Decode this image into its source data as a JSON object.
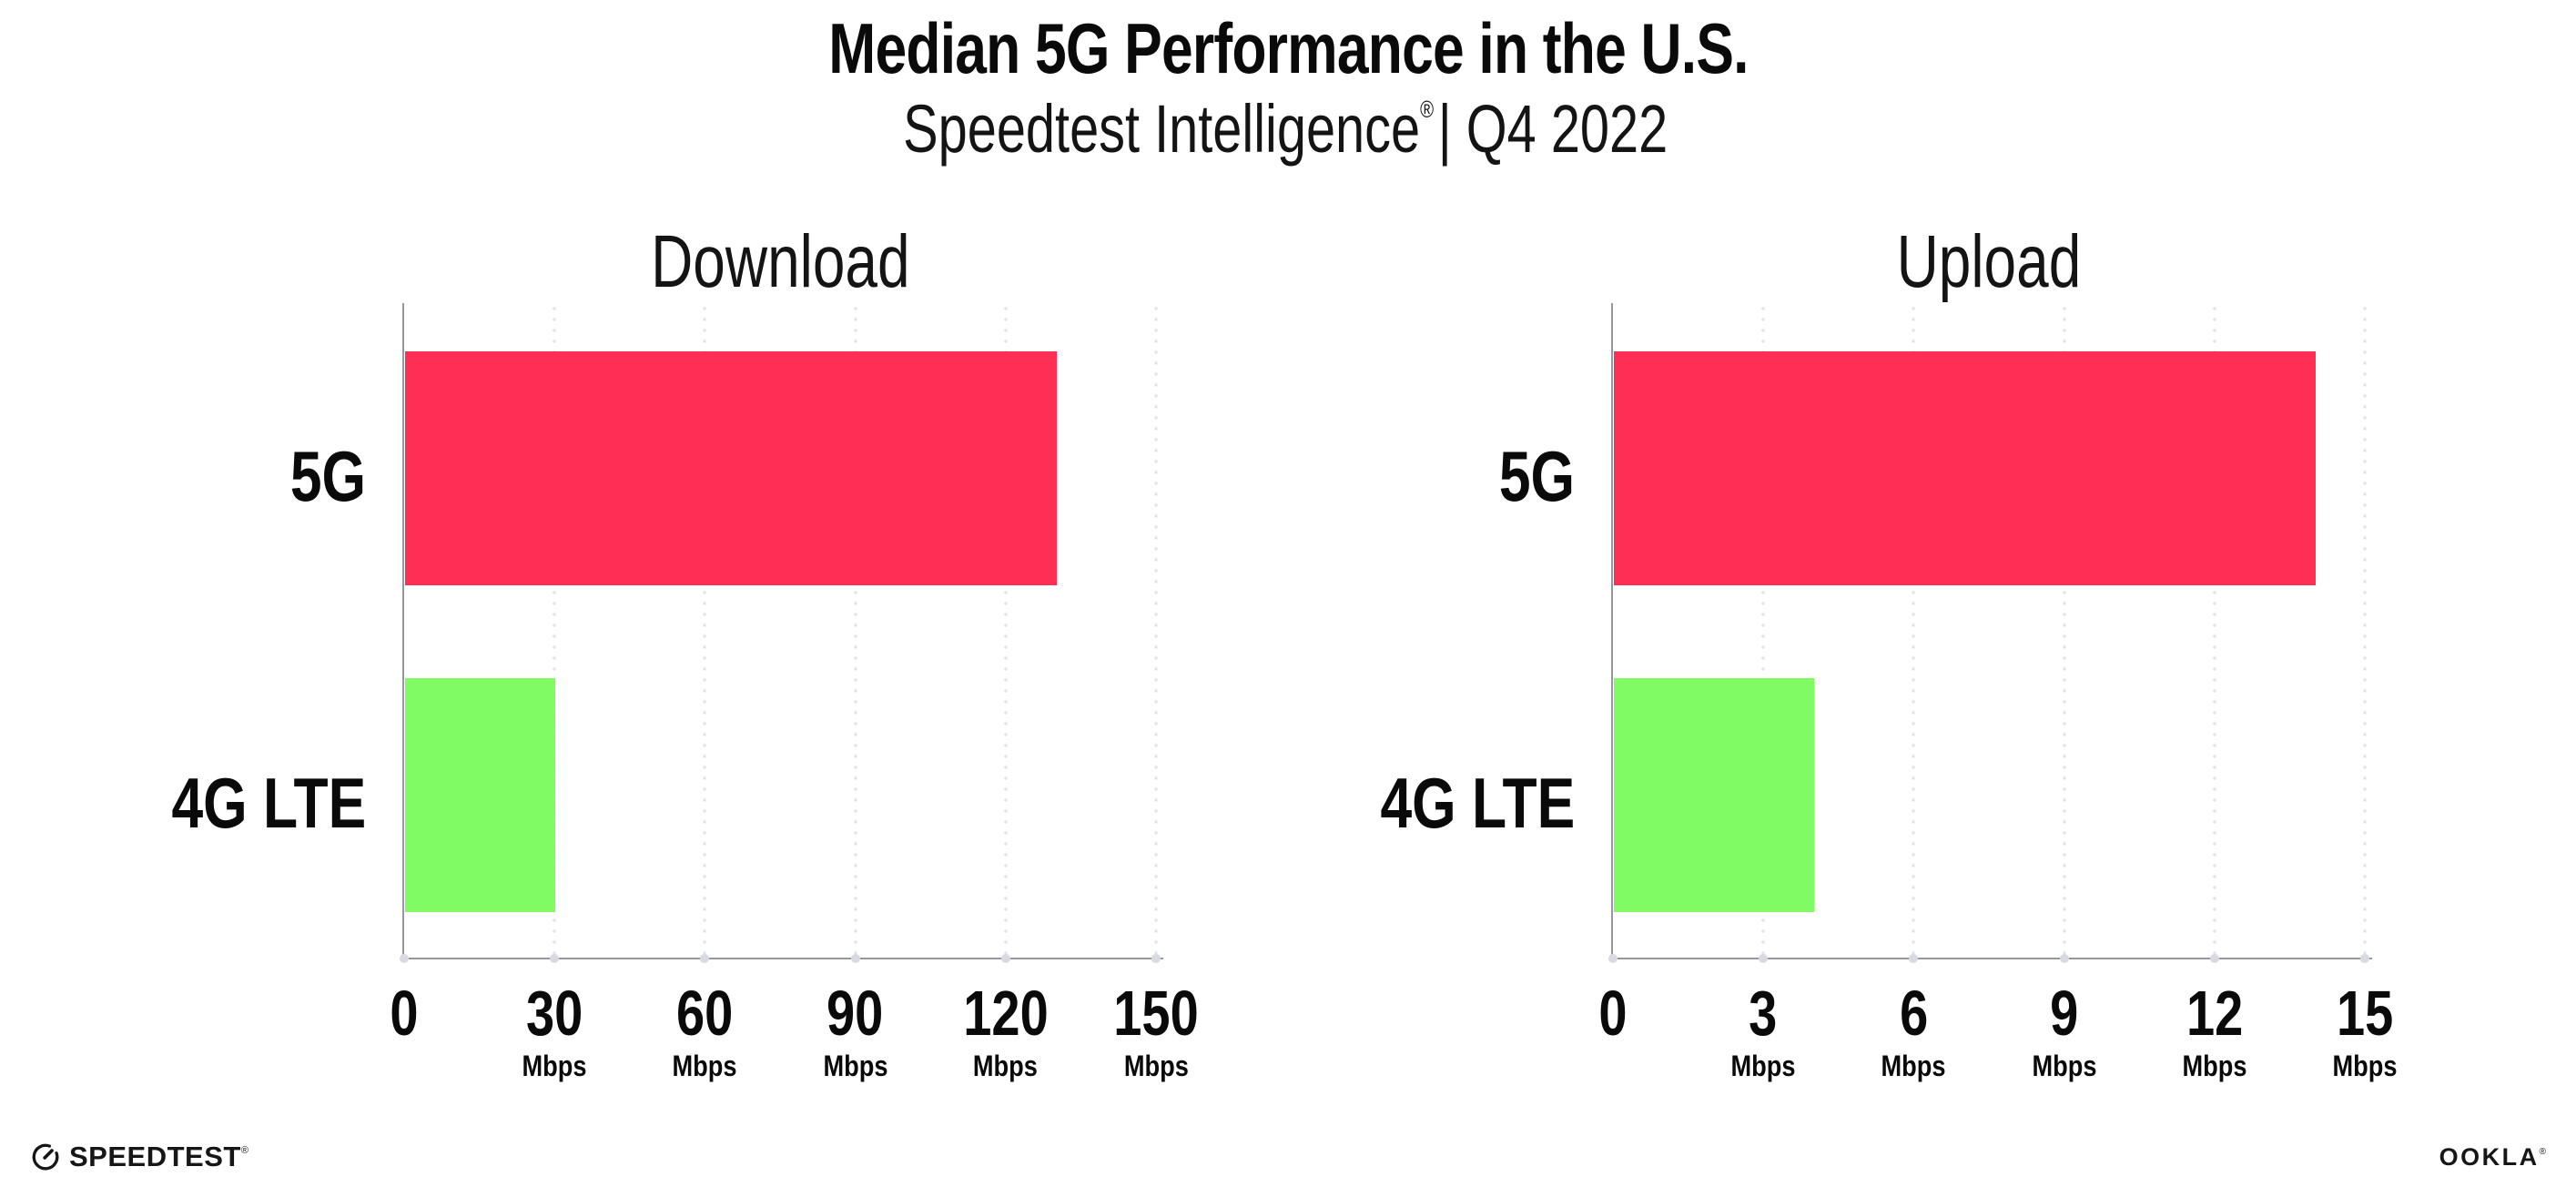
{
  "page": {
    "title": "Median 5G Performance in the U.S.",
    "subtitle_brand": "Speedtest Intelligence",
    "subtitle_reg": "®",
    "subtitle_rest": "| Q4 2022"
  },
  "footer": {
    "speedtest_label": "SPEEDTEST",
    "speedtest_reg": "®",
    "ookla_label": "OOKLA",
    "ookla_reg": "®"
  },
  "colors": {
    "bar_5g": "#FF2E55",
    "bar_4g_lte": "#80FB63",
    "axis": "#97979F",
    "grid_dot": "#E3E3EF",
    "text": "#111111",
    "background": "#FFFFFF"
  },
  "chart_data": [
    {
      "type": "bar",
      "orientation": "horizontal",
      "title": "Download",
      "categories": [
        "5G",
        "4G LTE"
      ],
      "values": [
        130,
        30
      ],
      "value_unit": "Mbps",
      "xlim": [
        0,
        150
      ],
      "xticks": [
        0,
        30,
        60,
        90,
        120,
        150
      ],
      "xtick_unit": "Mbps",
      "bar_colors": [
        "#FF2E55",
        "#80FB63"
      ],
      "grid": "dotted vertical gridlines at each tick",
      "legend": "none"
    },
    {
      "type": "bar",
      "orientation": "horizontal",
      "title": "Upload",
      "categories": [
        "5G",
        "4G LTE"
      ],
      "values": [
        14,
        4
      ],
      "value_unit": "Mbps",
      "xlim": [
        0,
        15
      ],
      "xticks": [
        0,
        3,
        6,
        9,
        12,
        15
      ],
      "xtick_unit": "Mbps",
      "bar_colors": [
        "#FF2E55",
        "#80FB63"
      ],
      "grid": "dotted vertical gridlines at each tick",
      "legend": "none"
    }
  ]
}
